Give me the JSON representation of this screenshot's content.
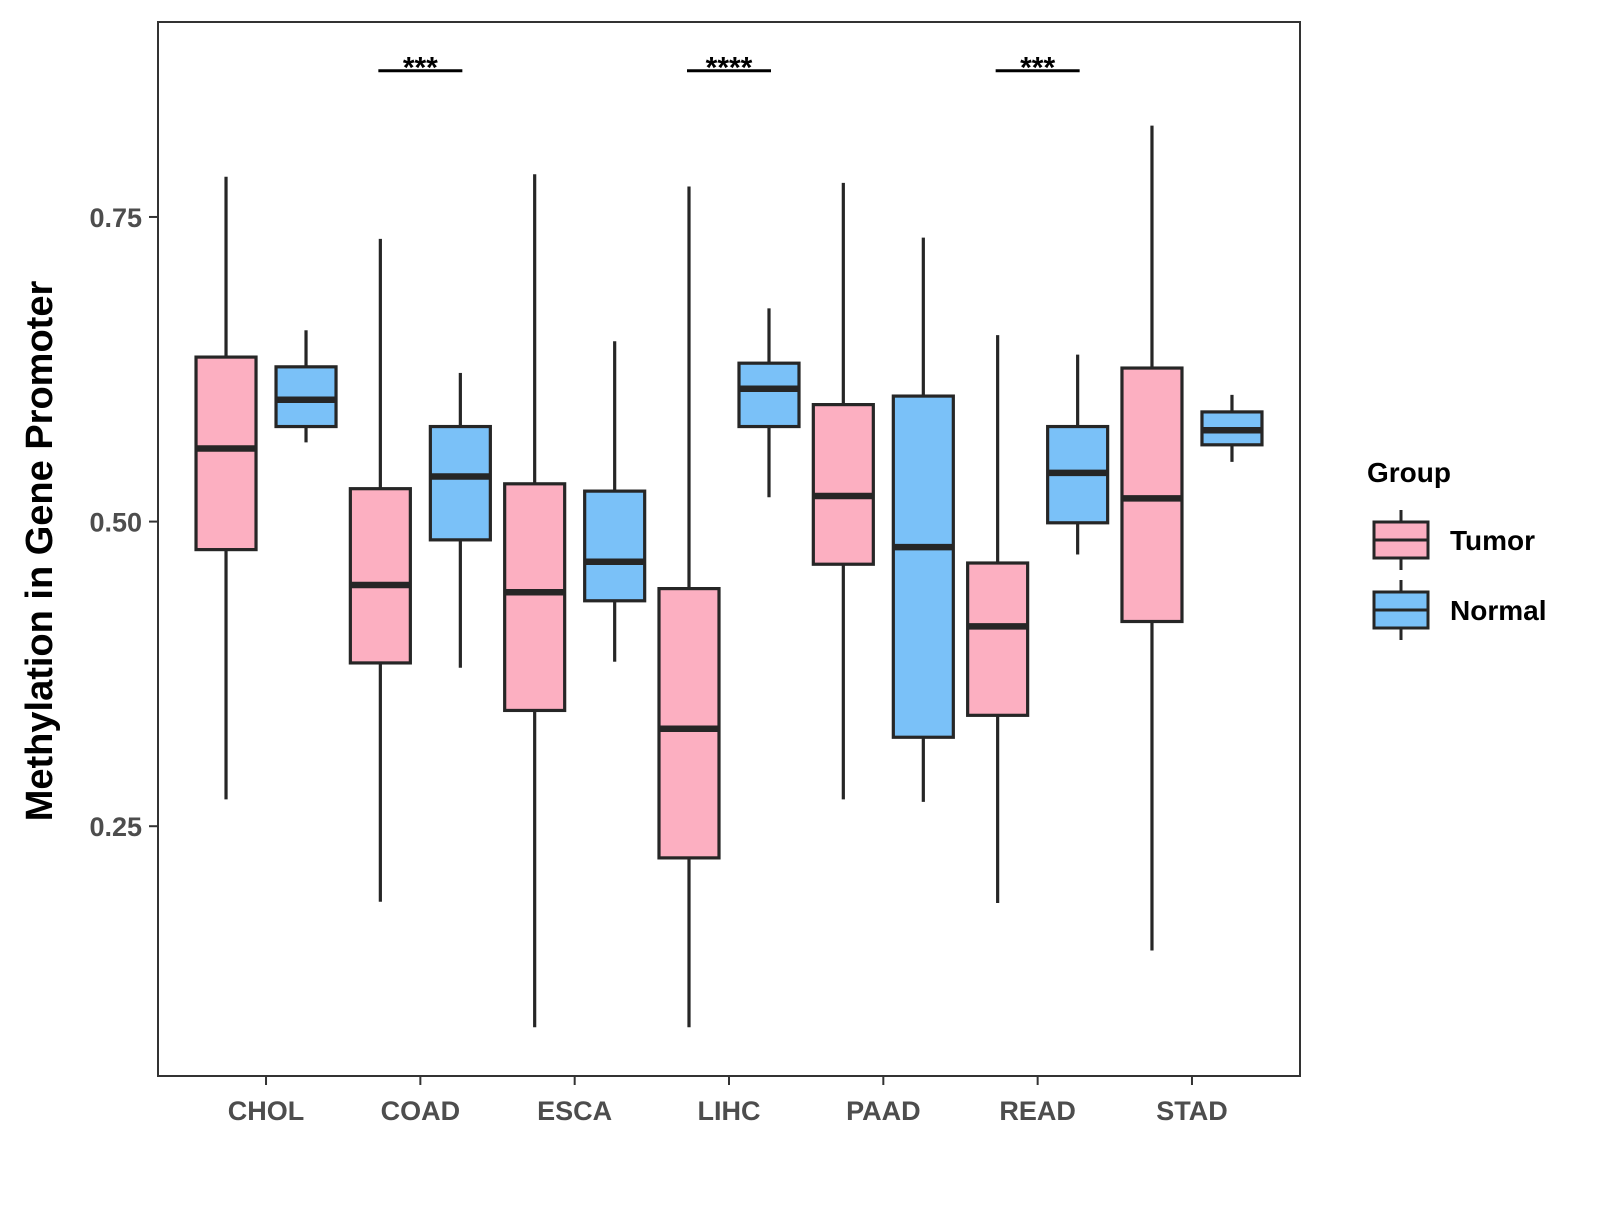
{
  "chart_data": {
    "type": "boxplot",
    "title": "",
    "xlabel": "",
    "ylabel": "Methylation in Gene Promoter",
    "ylim": [
      0.045,
      0.91
    ],
    "yticks": [
      0.25,
      0.5,
      0.75
    ],
    "ytick_labels": [
      "0.25",
      "0.50",
      "0.75"
    ],
    "grid": false,
    "categories": [
      "CHOL",
      "COAD",
      "ESCA",
      "LIHC",
      "PAAD",
      "READ",
      "STAD"
    ],
    "legend": {
      "title": "Group",
      "position": "right",
      "entries": [
        "Tumor",
        "Normal"
      ]
    },
    "series": [
      {
        "name": "Tumor",
        "color": "#FCAFC1",
        "boxes": [
          {
            "category": "CHOL",
            "min": 0.272,
            "q1": 0.477,
            "median": 0.56,
            "q3": 0.635,
            "max": 0.783
          },
          {
            "category": "COAD",
            "min": 0.188,
            "q1": 0.384,
            "median": 0.448,
            "q3": 0.527,
            "max": 0.732
          },
          {
            "category": "ESCA",
            "min": 0.085,
            "q1": 0.345,
            "median": 0.442,
            "q3": 0.531,
            "max": 0.785
          },
          {
            "category": "LIHC",
            "min": 0.085,
            "q1": 0.224,
            "median": 0.33,
            "q3": 0.445,
            "max": 0.775
          },
          {
            "category": "PAAD",
            "min": 0.272,
            "q1": 0.465,
            "median": 0.521,
            "q3": 0.596,
            "max": 0.778
          },
          {
            "category": "READ",
            "min": 0.187,
            "q1": 0.341,
            "median": 0.414,
            "q3": 0.466,
            "max": 0.653
          },
          {
            "category": "STAD",
            "min": 0.148,
            "q1": 0.418,
            "median": 0.519,
            "q3": 0.626,
            "max": 0.825
          }
        ]
      },
      {
        "name": "Normal",
        "color": "#7AC1F8",
        "boxes": [
          {
            "category": "CHOL",
            "min": 0.565,
            "q1": 0.578,
            "median": 0.6,
            "q3": 0.627,
            "max": 0.657
          },
          {
            "category": "COAD",
            "min": 0.38,
            "q1": 0.485,
            "median": 0.537,
            "q3": 0.578,
            "max": 0.622
          },
          {
            "category": "ESCA",
            "min": 0.385,
            "q1": 0.435,
            "median": 0.467,
            "q3": 0.525,
            "max": 0.648
          },
          {
            "category": "LIHC",
            "min": 0.52,
            "q1": 0.578,
            "median": 0.609,
            "q3": 0.63,
            "max": 0.675
          },
          {
            "category": "PAAD",
            "min": 0.27,
            "q1": 0.323,
            "median": 0.479,
            "q3": 0.603,
            "max": 0.733
          },
          {
            "category": "READ",
            "min": 0.473,
            "q1": 0.499,
            "median": 0.54,
            "q3": 0.578,
            "max": 0.637
          },
          {
            "category": "STAD",
            "min": 0.549,
            "q1": 0.563,
            "median": 0.575,
            "q3": 0.59,
            "max": 0.604
          }
        ]
      }
    ],
    "annotations": [
      {
        "category": "COAD",
        "label": "***",
        "y": 0.87
      },
      {
        "category": "LIHC",
        "label": "****",
        "y": 0.87
      },
      {
        "category": "READ",
        "label": "***",
        "y": 0.87
      }
    ]
  }
}
